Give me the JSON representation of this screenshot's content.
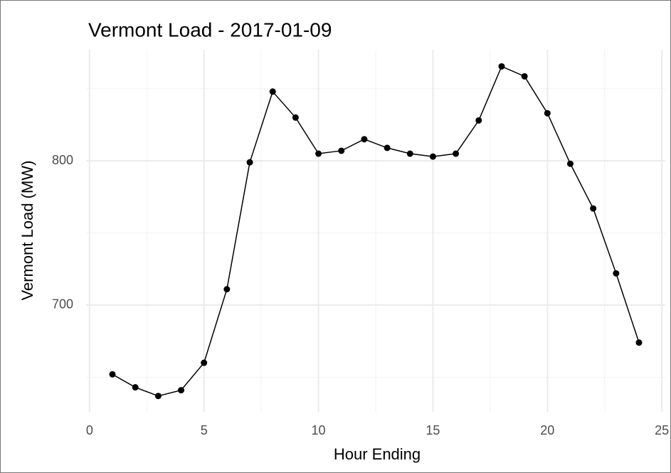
{
  "chart_data": {
    "type": "line",
    "title": "Vermont Load - 2017-01-09",
    "x_label": "Hour Ending",
    "y_label": "Vermont Load (MW)",
    "series": [
      {
        "name": "Vermont Load",
        "color": "#000000",
        "x": [
          1,
          2,
          3,
          4,
          5,
          6,
          7,
          8,
          9,
          10,
          11,
          12,
          13,
          14,
          15,
          16,
          17,
          18,
          19,
          20,
          21,
          22,
          23,
          24
        ],
        "values": [
          652,
          643,
          637,
          641,
          660,
          711,
          799,
          848,
          830,
          805,
          807,
          815,
          809,
          805,
          803,
          805,
          828,
          865.5,
          858.6,
          833,
          798,
          767,
          722,
          674
        ]
      }
    ],
    "xlim": [
      -0.15,
      25.15
    ],
    "xticks": [
      0,
      5,
      10,
      15,
      20,
      25
    ],
    "ylim": [
      626,
      877
    ],
    "yticks": [
      700,
      800
    ],
    "grid": true
  }
}
